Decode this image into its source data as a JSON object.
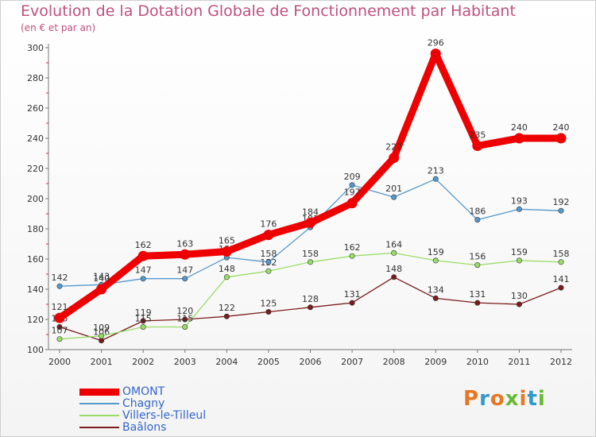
{
  "chart_data": {
    "type": "line",
    "title": "Evolution de la Dotation Globale de Fonctionnement par Habitant",
    "subtitle": "(en € et par an)",
    "xlabel": "",
    "ylabel": "",
    "x": [
      "2000",
      "2001",
      "2002",
      "2003",
      "2004",
      "2005",
      "2006",
      "2007",
      "2008",
      "2009",
      "2010",
      "2011",
      "2012"
    ],
    "ylim": [
      100,
      300
    ],
    "yticks": [
      100,
      120,
      140,
      160,
      180,
      200,
      220,
      240,
      260,
      280,
      300
    ],
    "grid": false,
    "legend_position": "bottom-left",
    "series": [
      {
        "name": "Baâlons",
        "color": "#7a1c1c",
        "values": [
          115,
          106,
          119,
          120,
          122,
          125,
          128,
          131,
          148,
          134,
          131,
          130,
          141
        ]
      },
      {
        "name": "Villers-le-Tilleul",
        "color": "#99dd66",
        "values": [
          107,
          109,
          115,
          115,
          148,
          152,
          158,
          162,
          164,
          159,
          156,
          159,
          158
        ]
      },
      {
        "name": "Chagny",
        "color": "#5599cc",
        "values": [
          142,
          143,
          147,
          147,
          161,
          158,
          181,
          209,
          201,
          213,
          186,
          193,
          192
        ]
      },
      {
        "name": "OMONT",
        "color": "#ee0000",
        "values": [
          121,
          140,
          162,
          163,
          165,
          176,
          184,
          197,
          227,
          296,
          235,
          240,
          240
        ]
      }
    ],
    "legend_order": [
      "OMONT",
      "Chagny",
      "Villers-le-Tilleul",
      "Baâlons"
    ]
  },
  "legend": {
    "items": [
      {
        "label": "OMONT",
        "color": "#ee0000"
      },
      {
        "label": "Chagny",
        "color": "#5599cc"
      },
      {
        "label": "Villers-le-Tilleul",
        "color": "#99dd66"
      },
      {
        "label": "Baâlons",
        "color": "#7a1c1c"
      }
    ]
  },
  "logo": {
    "text": "Proxiti",
    "colors": [
      "#e87722",
      "#3399cc",
      "#e87722",
      "#66bb33",
      "#e87722",
      "#3399cc",
      "#66bb33"
    ]
  }
}
